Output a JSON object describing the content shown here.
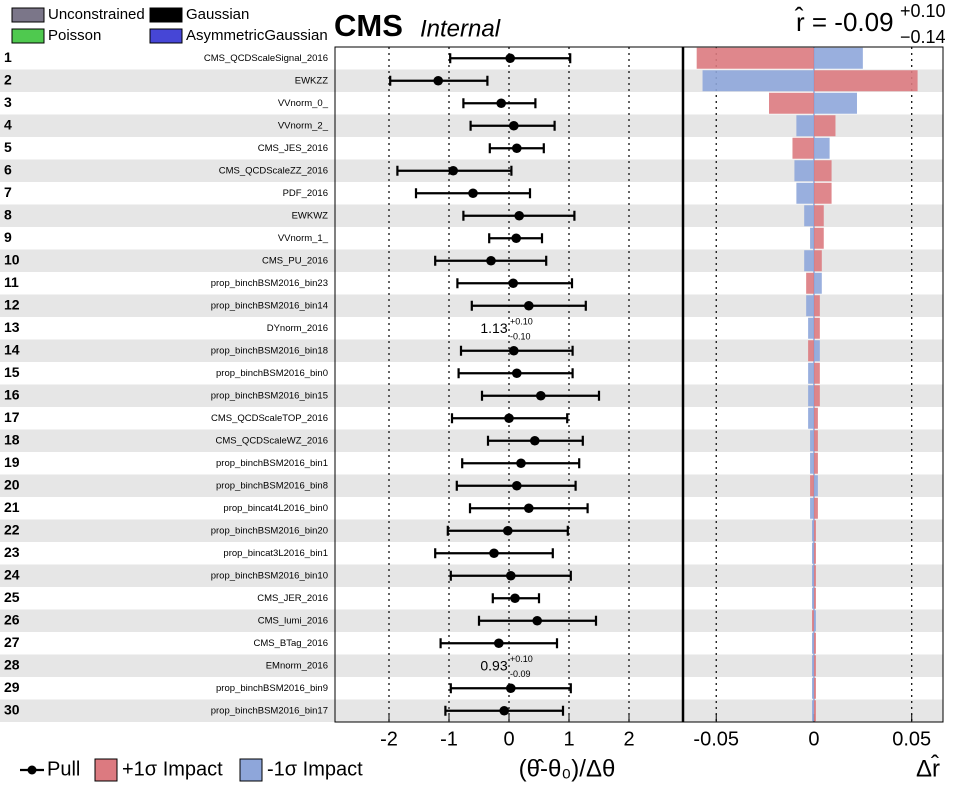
{
  "chart_data": {
    "type": "impact",
    "title": "CMS",
    "subtitle": "Internal",
    "r_label": "r̂ = -0.09",
    "r_up": "+0.10",
    "r_down": "−0.14",
    "legend": [
      {
        "name": "Unconstrained",
        "color": "#7b7689"
      },
      {
        "name": "Gaussian",
        "color": "#000000"
      },
      {
        "name": "Poisson",
        "color": "#4fc94f"
      },
      {
        "name": "AsymmetricGaussian",
        "color": "#4646d6"
      }
    ],
    "rows": [
      1,
      2,
      3,
      4,
      5,
      6,
      7,
      8,
      9,
      10,
      11,
      12,
      13,
      14,
      15,
      16,
      17,
      18,
      19,
      20,
      21,
      22,
      23,
      24,
      25,
      26,
      27,
      28,
      29,
      30
    ],
    "categories": [
      "CMS_QCDScaleSignal_2016",
      "EWKZZ",
      "VVnorm_0_",
      "VVnorm_2_",
      "CMS_JES_2016",
      "CMS_QCDScaleZZ_2016",
      "PDF_2016",
      "EWKWZ",
      "VVnorm_1_",
      "CMS_PU_2016",
      "prop_binchBSM2016_bin23",
      "prop_binchBSM2016_bin14",
      "DYnorm_2016",
      "prop_binchBSM2016_bin18",
      "prop_binchBSM2016_bin0",
      "prop_binchBSM2016_bin15",
      "CMS_QCDScaleTOP_2016",
      "CMS_QCDScaleWZ_2016",
      "prop_binchBSM2016_bin1",
      "prop_binchBSM2016_bin8",
      "prop_bincat4L2016_bin0",
      "prop_binchBSM2016_bin20",
      "prop_bincat3L2016_bin1",
      "prop_binchBSM2016_bin10",
      "CMS_JER_2016",
      "CMS_lumi_2016",
      "CMS_BTag_2016",
      "EMnorm_2016",
      "prop_binchBSM2016_bin9",
      "prop_binchBSM2016_bin17"
    ],
    "constraint": [
      "Gaussian",
      "Gaussian",
      "Gaussian",
      "Gaussian",
      "Gaussian",
      "Gaussian",
      "Gaussian",
      "Gaussian",
      "Gaussian",
      "Gaussian",
      "Gaussian",
      "Gaussian",
      "Unconstrained",
      "Gaussian",
      "Gaussian",
      "Gaussian",
      "Gaussian",
      "Gaussian",
      "Gaussian",
      "Gaussian",
      "Gaussian",
      "Gaussian",
      "Gaussian",
      "Gaussian",
      "Gaussian",
      "Gaussian",
      "Gaussian",
      "Unconstrained",
      "Gaussian",
      "Gaussian"
    ],
    "pull_name": "Pull",
    "pulls": [
      0.02,
      -1.18,
      -0.13,
      0.08,
      0.13,
      -0.93,
      -0.6,
      0.17,
      0.12,
      -0.3,
      0.07,
      0.33,
      null,
      0.08,
      0.13,
      0.53,
      0.0,
      0.43,
      0.2,
      0.13,
      0.33,
      -0.02,
      -0.25,
      0.03,
      0.1,
      0.47,
      -0.17,
      null,
      0.03,
      -0.08
    ],
    "pull_err_low": [
      1.0,
      0.8,
      0.63,
      0.72,
      0.45,
      0.93,
      0.95,
      0.93,
      0.45,
      0.93,
      0.93,
      0.95,
      null,
      0.88,
      0.97,
      0.98,
      0.95,
      0.78,
      0.98,
      1.0,
      0.98,
      1.0,
      0.98,
      1.0,
      0.37,
      0.97,
      0.97,
      null,
      1.0,
      0.98
    ],
    "pull_err_high": [
      1.0,
      0.82,
      0.57,
      0.68,
      0.45,
      0.97,
      0.95,
      0.92,
      0.43,
      0.92,
      0.98,
      0.95,
      null,
      0.98,
      0.93,
      0.97,
      0.97,
      0.8,
      0.97,
      0.98,
      0.98,
      1.0,
      0.98,
      1.0,
      0.4,
      0.98,
      0.97,
      null,
      1.0,
      0.98
    ],
    "fit_labels": [
      null,
      null,
      null,
      null,
      null,
      null,
      null,
      null,
      null,
      null,
      null,
      null,
      [
        "1.13",
        "+0.10",
        "-0.10"
      ],
      null,
      null,
      null,
      null,
      null,
      null,
      null,
      null,
      null,
      null,
      null,
      null,
      null,
      null,
      [
        "0.93",
        "+0.10",
        "-0.09"
      ],
      null,
      null
    ],
    "xlim": [
      -2.9,
      2.9
    ],
    "xticks": [
      -2,
      -1,
      0,
      1,
      2
    ],
    "xlabel": "(θ̂-θ₀)/Δθ",
    "impact_xlim": [
      -0.067,
      0.066
    ],
    "impact_xticks": [
      -0.05,
      0,
      0.05
    ],
    "impact_xlabel": "Δr̂",
    "series": [
      {
        "name": "+1σ Impact",
        "color": "#dc7a80",
        "values": [
          -0.06,
          0.053,
          -0.023,
          0.011,
          -0.011,
          0.009,
          0.009,
          0.005,
          0.005,
          0.004,
          -0.004,
          0.003,
          0.003,
          -0.003,
          0.003,
          0.003,
          0.002,
          0.002,
          0.002,
          -0.002,
          0.002,
          0.001,
          0.001,
          0.001,
          0.001,
          -0.001,
          0.001,
          0.001,
          0.001,
          0.001
        ]
      },
      {
        "name": "-1σ Impact",
        "color": "#8ea6da",
        "values": [
          0.025,
          -0.057,
          0.022,
          -0.009,
          0.008,
          -0.01,
          -0.009,
          -0.005,
          -0.002,
          -0.005,
          0.004,
          -0.004,
          -0.003,
          0.003,
          -0.003,
          -0.003,
          -0.003,
          -0.002,
          -0.002,
          0.002,
          -0.002,
          -0.001,
          -0.001,
          -0.001,
          -0.001,
          0.001,
          -0.001,
          -0.001,
          -0.001,
          -0.001
        ]
      }
    ],
    "grid": true
  }
}
